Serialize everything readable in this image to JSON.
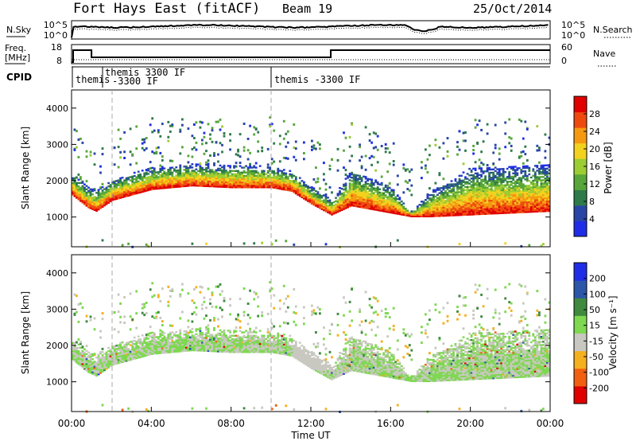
{
  "header": {
    "station": "Fort Hays East (fitACF)",
    "beam": "Beam 19",
    "date": "25/Oct/2014"
  },
  "noise_panel": {
    "left_label": "N.Sky",
    "left_ticks": [
      "10^5",
      "10^0"
    ],
    "right_ticks": [
      "10^5",
      "10^0"
    ],
    "right_label": "N.Search"
  },
  "freq_panel": {
    "left_label_1": "Freq.",
    "left_label_2": "[MHz]",
    "left_ticks": [
      "18",
      "8"
    ],
    "right_ticks": [
      "60",
      "0"
    ],
    "right_label": "Nave"
  },
  "cpid": {
    "label": "CPID",
    "segments": [
      {
        "line1": "themis",
        "line2": ""
      },
      {
        "line1": "themis 3300 IF",
        "line2": "-3300 IF"
      },
      {
        "line1": "themis -3300 IF",
        "line2": ""
      }
    ]
  },
  "power_panel": {
    "ylabel": "Slant Range [km]",
    "colorbar_label": "Power [dB]",
    "colorbar_ticks": [
      "28",
      "24",
      "20",
      "16",
      "12",
      "8",
      "4"
    ],
    "colors": [
      "#1f2ee6",
      "#2946a6",
      "#2f7a4a",
      "#58a63a",
      "#9ccd32",
      "#f2d21e",
      "#f59a10",
      "#ee4a10",
      "#e00000"
    ]
  },
  "velocity_panel": {
    "ylabel": "Slant Range [km]",
    "colorbar_label": "Velocity [m s⁻¹]",
    "colorbar_ticks": [
      "200",
      "100",
      "50",
      "15",
      "-15",
      "-50",
      "-100",
      "-200"
    ],
    "colors": [
      "#e00000",
      "#f06010",
      "#f5b020",
      "#c8c8c0",
      "#7ed850",
      "#3f8a3f",
      "#2c57a8",
      "#1f2ee6"
    ]
  },
  "xaxis": {
    "label": "Time UT",
    "ticks": [
      "00:00",
      "04:00",
      "08:00",
      "12:00",
      "16:00",
      "20:00",
      "00:00"
    ]
  },
  "chart_data": {
    "type": "heatmap",
    "x_unit": "hours UT",
    "x_range": [
      0,
      24
    ],
    "y_range_km": [
      180,
      4500
    ],
    "y_ticks": [
      1000,
      2000,
      3000,
      4000
    ],
    "power_scale_dB": [
      0,
      30
    ],
    "velocity_scale": [
      -250,
      250
    ],
    "main_band_lower_edge_km": {
      "x": [
        0,
        0.8,
        1.2,
        2,
        4,
        6,
        8,
        10,
        11,
        12,
        13,
        14,
        16,
        17,
        18,
        20,
        22,
        24
      ],
      "y": [
        1600,
        1250,
        1150,
        1450,
        1750,
        1850,
        1800,
        1800,
        1700,
        1350,
        1050,
        1300,
        1100,
        1000,
        1000,
        1050,
        1100,
        1150
      ]
    },
    "main_band_thickness_km": {
      "x": [
        0,
        4,
        10,
        13,
        14,
        16,
        17,
        18,
        20,
        24
      ],
      "y": [
        550,
        600,
        600,
        400,
        1000,
        700,
        150,
        700,
        1300,
        1300
      ]
    }
  }
}
